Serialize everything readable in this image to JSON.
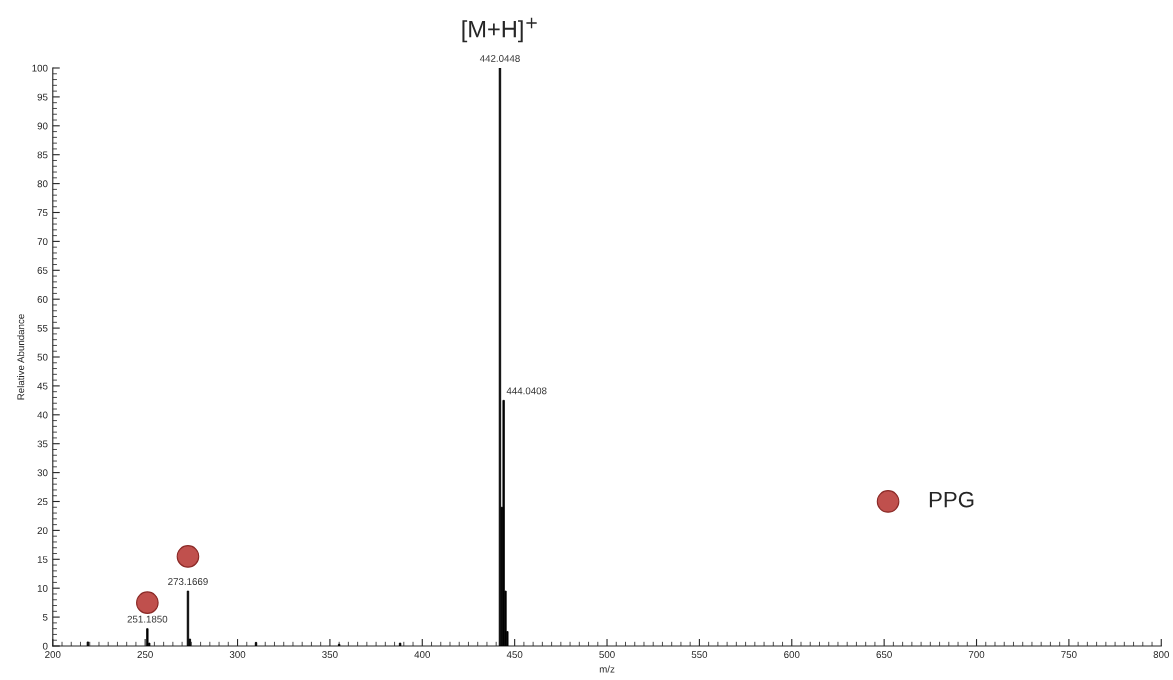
{
  "chart_data": {
    "type": "bar",
    "xlabel": "m/z",
    "ylabel": "Relative Abundance",
    "series": [
      {
        "color": "#000000",
        "x": [
          219,
          251.185,
          252.2,
          273.1669,
          274.2,
          310,
          355,
          388,
          442.0448,
          443.05,
          444.0408,
          445.04,
          446.04
        ],
        "values": [
          0.7,
          3,
          0.5,
          9.5,
          1.2,
          0.6,
          0.3,
          0.5,
          100,
          24,
          42.5,
          9.5,
          2.5
        ]
      },
      {
        "type": "scatter",
        "name": "PPG",
        "color": "#c0504d",
        "x": [
          251.185,
          273.1669
        ],
        "values": [
          7.5,
          15.5
        ]
      }
    ],
    "annotations": [
      {
        "text": "[M+H]$^{+}$",
        "x": 442.0448,
        "y": 100
      },
      {
        "text": "251.1850",
        "x": 251.185,
        "y": 3
      },
      {
        "text": "273.1669",
        "x": 273.1669,
        "y": 9.5
      },
      {
        "text": "442.0448",
        "x": 442.0448,
        "y": 100
      },
      {
        "text": "444.0408",
        "x": 444.0408,
        "y": 42.5
      }
    ],
    "xlim": [
      200,
      800
    ],
    "xticks": [
      200,
      250,
      300,
      350,
      400,
      450,
      500,
      550,
      600,
      650,
      700,
      750,
      800
    ],
    "ylim": [
      0,
      100
    ],
    "yticks": [
      0,
      5,
      10,
      15,
      20,
      25,
      30,
      35,
      40,
      45,
      50,
      55,
      60,
      65,
      70,
      75,
      80,
      85,
      90,
      95,
      100
    ],
    "grid": false,
    "legend": "right",
    "marker": "circle"
  }
}
